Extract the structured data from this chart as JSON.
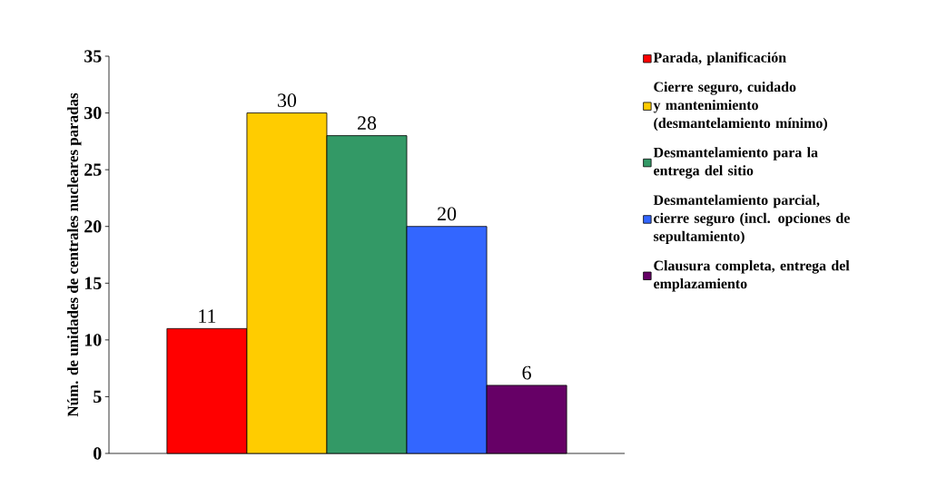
{
  "chart_data": {
    "type": "bar",
    "ylabel": "Núm. de unidades de centrales nucleares paradas",
    "categories": [
      null
    ],
    "series": [
      {
        "name": "Parada, planificación",
        "color": "#ff0000",
        "values": [
          11
        ]
      },
      {
        "name": "Cierre seguro, cuidado y mantenimiento (desmantelamiento mínimo)",
        "color": "#ffcc00",
        "values": [
          30
        ]
      },
      {
        "name": "Desmantelamiento para la entrega del sitio",
        "color": "#339966",
        "values": [
          28
        ]
      },
      {
        "name": "Desmantelamiento parcial, cierre seguro (incl. opciones de sepultamiento)",
        "color": "#3366ff",
        "values": [
          20
        ]
      },
      {
        "name": "Clausura completa, entrega del emplazamiento",
        "color": "#660066",
        "values": [
          6
        ]
      }
    ],
    "ylim": [
      0,
      35
    ],
    "yticks": [
      0,
      5,
      10,
      15,
      20,
      25,
      30,
      35
    ],
    "data_labels": true,
    "legend": "right",
    "grid": false
  }
}
